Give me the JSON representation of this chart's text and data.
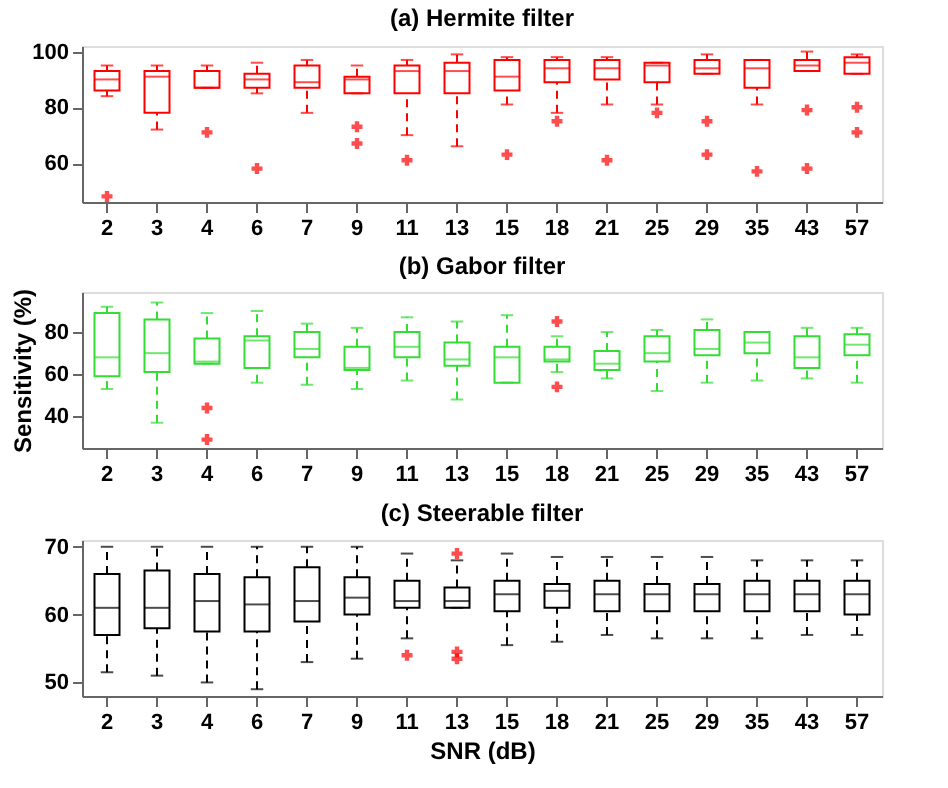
{
  "chart_data": [
    {
      "type": "box",
      "title": "(a) Hermite filter",
      "categories": [
        "2",
        "3",
        "4",
        "6",
        "7",
        "9",
        "11",
        "13",
        "15",
        "18",
        "21",
        "25",
        "29",
        "35",
        "43",
        "57"
      ],
      "ylim": [
        46,
        102
      ],
      "yticks": [
        60,
        80,
        100
      ],
      "line_style": "dashed",
      "marker": "cross",
      "series": [
        {
          "color": "#ff0000",
          "boxes": [
            {
              "low": 84,
              "q1": 86,
              "median": 90,
              "q3": 93,
              "high": 95,
              "outliers": [
                48
              ]
            },
            {
              "low": 72,
              "q1": 78,
              "median": 91,
              "q3": 93,
              "high": 95
            },
            {
              "low": 87,
              "q1": 87,
              "median": 87,
              "q3": 93,
              "high": 95,
              "outliers": [
                71
              ]
            },
            {
              "low": 85,
              "q1": 87,
              "median": 90,
              "q3": 92,
              "high": 96,
              "outliers": [
                58
              ]
            },
            {
              "low": 78,
              "q1": 87,
              "median": 89,
              "q3": 95,
              "high": 97
            },
            {
              "low": 85,
              "q1": 85,
              "median": 90,
              "q3": 91,
              "high": 95,
              "outliers": [
                73,
                67
              ]
            },
            {
              "low": 70,
              "q1": 85,
              "median": 93,
              "q3": 95,
              "high": 97,
              "outliers": [
                61
              ]
            },
            {
              "low": 66,
              "q1": 85,
              "median": 93,
              "q3": 96,
              "high": 99
            },
            {
              "low": 81,
              "q1": 86,
              "median": 91,
              "q3": 97,
              "high": 98,
              "outliers": [
                63
              ]
            },
            {
              "low": 78,
              "q1": 89,
              "median": 94,
              "q3": 97,
              "high": 98,
              "outliers": [
                75
              ]
            },
            {
              "low": 81,
              "q1": 90,
              "median": 94,
              "q3": 97,
              "high": 98,
              "outliers": [
                61
              ]
            },
            {
              "low": 81,
              "q1": 89,
              "median": 95,
              "q3": 96,
              "high": 96,
              "outliers": [
                78
              ]
            },
            {
              "low": 92,
              "q1": 92,
              "median": 94,
              "q3": 97,
              "high": 99,
              "outliers": [
                75,
                63
              ]
            },
            {
              "low": 81,
              "q1": 87,
              "median": 94,
              "q3": 97,
              "high": 97,
              "outliers": [
                57
              ]
            },
            {
              "low": 93,
              "q1": 93,
              "median": 95,
              "q3": 97,
              "high": 100,
              "outliers": [
                79,
                58
              ]
            },
            {
              "low": 92,
              "q1": 92,
              "median": 96,
              "q3": 98,
              "high": 99,
              "outliers": [
                80,
                71
              ]
            }
          ]
        }
      ]
    },
    {
      "type": "box",
      "title": "(b) Gabor filter",
      "ylabel": "Sensitivity (%)",
      "categories": [
        "2",
        "3",
        "4",
        "6",
        "7",
        "9",
        "11",
        "13",
        "15",
        "18",
        "21",
        "25",
        "29",
        "35",
        "43",
        "57"
      ],
      "ylim": [
        25,
        99
      ],
      "yticks": [
        40,
        60,
        80
      ],
      "line_style": "dashed",
      "marker": "cross",
      "series": [
        {
          "color": "#33dd33",
          "boxes": [
            {
              "low": 53,
              "q1": 59,
              "median": 68,
              "q3": 89,
              "high": 92
            },
            {
              "low": 37,
              "q1": 61,
              "median": 70,
              "q3": 86,
              "high": 94
            },
            {
              "low": 65,
              "q1": 65,
              "median": 66,
              "q3": 77,
              "high": 89
            },
            {
              "low": 56,
              "q1": 63,
              "median": 76,
              "q3": 78,
              "high": 90
            },
            {
              "low": 55,
              "q1": 68,
              "median": 72,
              "q3": 80,
              "high": 84
            },
            {
              "low": 53,
              "q1": 62,
              "median": 63,
              "q3": 73,
              "high": 82
            },
            {
              "low": 57,
              "q1": 68,
              "median": 73,
              "q3": 80,
              "high": 87
            },
            {
              "low": 48,
              "q1": 64,
              "median": 67,
              "q3": 75,
              "high": 85
            },
            {
              "low": 56,
              "q1": 56,
              "median": 68,
              "q3": 73,
              "high": 88
            },
            {
              "low": 61,
              "q1": 66,
              "median": 67,
              "q3": 73,
              "high": 78
            },
            {
              "low": 58,
              "q1": 62,
              "median": 65,
              "q3": 71,
              "high": 80
            },
            {
              "low": 52,
              "q1": 66,
              "median": 70,
              "q3": 78,
              "high": 81
            },
            {
              "low": 56,
              "q1": 69,
              "median": 72,
              "q3": 81,
              "high": 86
            },
            {
              "low": 57,
              "q1": 70,
              "median": 75,
              "q3": 80,
              "high": 80
            },
            {
              "low": 58,
              "q1": 63,
              "median": 68,
              "q3": 78,
              "high": 82
            },
            {
              "low": 56,
              "q1": 69,
              "median": 74,
              "q3": 79,
              "high": 82
            }
          ]
        },
        {
          "type": "scatter",
          "color": "#ff0000",
          "x": [
            "4",
            "4",
            "18",
            "18"
          ],
          "values": [
            44,
            29,
            85,
            54
          ]
        }
      ]
    },
    {
      "type": "box",
      "title": "(c) Steerable filter",
      "xlabel": "SNR (dB)",
      "categories": [
        "2",
        "3",
        "4",
        "6",
        "7",
        "9",
        "11",
        "13",
        "15",
        "18",
        "21",
        "25",
        "29",
        "35",
        "43",
        "57"
      ],
      "ylim": [
        48,
        71
      ],
      "yticks": [
        50,
        60,
        70
      ],
      "line_style": "dashed",
      "marker": "cross",
      "series": [
        {
          "color": "#000000",
          "boxes": [
            {
              "low": 51.5,
              "q1": 57,
              "median": 61,
              "q3": 66,
              "high": 70
            },
            {
              "low": 51,
              "q1": 58,
              "median": 61,
              "q3": 66.5,
              "high": 70
            },
            {
              "low": 50,
              "q1": 57.5,
              "median": 62,
              "q3": 66,
              "high": 70
            },
            {
              "low": 49,
              "q1": 57.5,
              "median": 61.5,
              "q3": 65.5,
              "high": 70
            },
            {
              "low": 53,
              "q1": 59,
              "median": 62,
              "q3": 67,
              "high": 70
            },
            {
              "low": 53.5,
              "q1": 60,
              "median": 62.5,
              "q3": 65.5,
              "high": 70
            },
            {
              "low": 56.5,
              "q1": 61,
              "median": 62,
              "q3": 65,
              "high": 69
            },
            {
              "low": 61,
              "q1": 61,
              "median": 62,
              "q3": 64,
              "high": 68
            },
            {
              "low": 55.5,
              "q1": 60.5,
              "median": 63,
              "q3": 65,
              "high": 69
            },
            {
              "low": 56,
              "q1": 61,
              "median": 63.5,
              "q3": 64.5,
              "high": 68.5
            },
            {
              "low": 57,
              "q1": 60.5,
              "median": 63,
              "q3": 65,
              "high": 68.5
            },
            {
              "low": 56.5,
              "q1": 60.5,
              "median": 63,
              "q3": 64.5,
              "high": 68.5
            },
            {
              "low": 56.5,
              "q1": 60.5,
              "median": 63,
              "q3": 64.5,
              "high": 68.5
            },
            {
              "low": 56.5,
              "q1": 60.5,
              "median": 63,
              "q3": 65,
              "high": 68
            },
            {
              "low": 57,
              "q1": 60.5,
              "median": 63,
              "q3": 65,
              "high": 68
            },
            {
              "low": 57,
              "q1": 60,
              "median": 63,
              "q3": 65,
              "high": 68
            }
          ]
        },
        {
          "type": "scatter",
          "color": "#ff0000",
          "x": [
            "11",
            "13",
            "13",
            "13"
          ],
          "values": [
            54,
            69,
            54.5,
            53.5
          ]
        }
      ]
    }
  ]
}
